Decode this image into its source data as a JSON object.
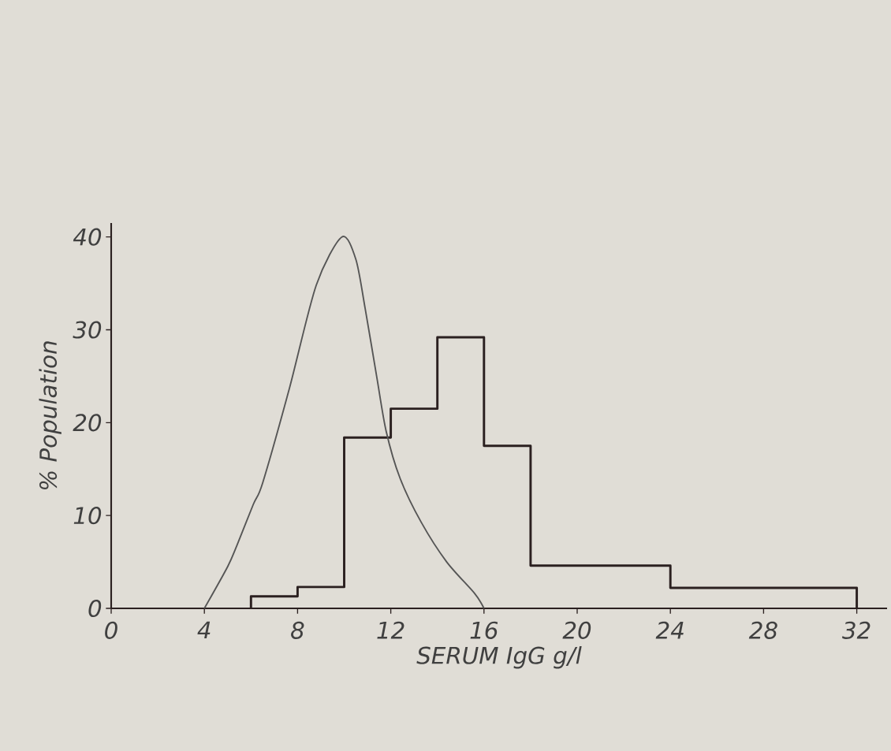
{
  "chart_data": {
    "type": "histogram",
    "xlabel": "SERUM IgG g/l",
    "ylabel": "% Population",
    "xlim": [
      0,
      33.3
    ],
    "ylim": [
      0,
      41.5
    ],
    "xticks": [
      0,
      4,
      8,
      12,
      16,
      20,
      24,
      28,
      32
    ],
    "yticks": [
      0,
      10,
      20,
      30,
      40
    ],
    "series": [
      {
        "color": "#2b2020",
        "bins": [
          6,
          8,
          10,
          12,
          14,
          16,
          18,
          24,
          32
        ],
        "values": [
          1.3,
          2.3,
          18.4,
          21.5,
          29.2,
          17.5,
          4.6,
          2.2
        ]
      },
      {
        "type": "line",
        "color": "#555555",
        "x": [
          4,
          5,
          5.4,
          6.1,
          6.5,
          7.65,
          8.8,
          9.9,
          10.5,
          10.9,
          11.4,
          11.8,
          12.4,
          13.3,
          14.4,
          15.6,
          16
        ],
        "values": [
          0,
          4.5,
          6.8,
          11.2,
          13.5,
          23.7,
          34.8,
          40,
          37.6,
          32.3,
          24.9,
          19.1,
          14,
          9.3,
          5,
          1.6,
          0
        ]
      }
    ]
  }
}
